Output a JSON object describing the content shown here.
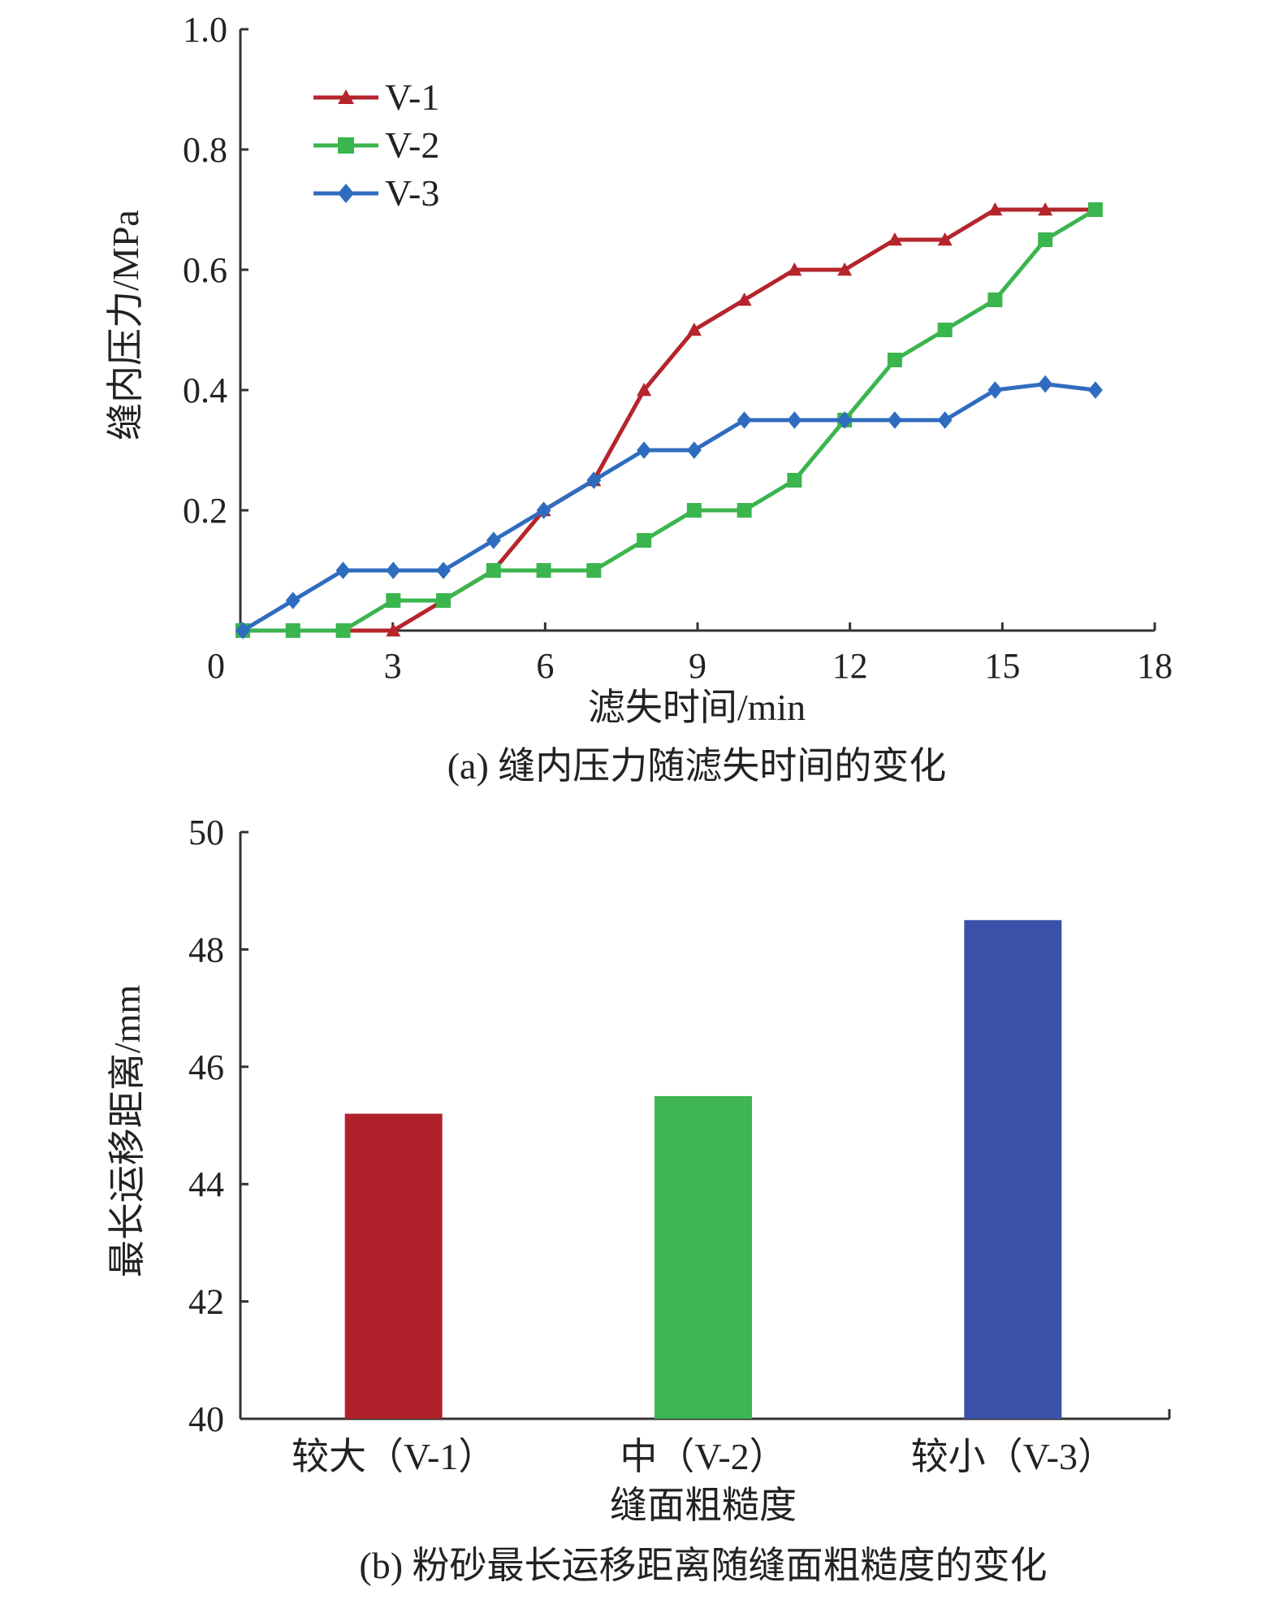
{
  "chart_data": [
    {
      "type": "line",
      "caption": "(a) 缝内压力随滤失时间的变化",
      "xlabel": "滤失时间/min",
      "ylabel": "缝内压力/MPa",
      "xlim": [
        0,
        18
      ],
      "ylim": [
        0,
        1.0
      ],
      "x_ticks": [
        0,
        3,
        6,
        9,
        12,
        15,
        18
      ],
      "y_ticks": [
        0.2,
        0.4,
        0.6,
        0.8,
        1.0
      ],
      "y_tick_labels": [
        "0.2",
        "0.4",
        "0.6",
        "0.8",
        "1.0"
      ],
      "legend_position": "top-left",
      "grid": false,
      "series": [
        {
          "name": "V-1",
          "color": "#b5252b",
          "marker": "triangle",
          "x": [
            0,
            1,
            2,
            3,
            4,
            5,
            6,
            7,
            8,
            9,
            10,
            11,
            12,
            13,
            14,
            15,
            16,
            17
          ],
          "y": [
            0,
            0,
            0,
            0,
            0.05,
            0.1,
            0.2,
            0.25,
            0.4,
            0.5,
            0.55,
            0.6,
            0.6,
            0.65,
            0.65,
            0.7,
            0.7,
            0.7
          ]
        },
        {
          "name": "V-2",
          "color": "#3bb54e",
          "marker": "square",
          "x": [
            0,
            1,
            2,
            3,
            4,
            5,
            6,
            7,
            8,
            9,
            10,
            11,
            12,
            13,
            14,
            15,
            16,
            17
          ],
          "y": [
            0,
            0,
            0,
            0.05,
            0.05,
            0.1,
            0.1,
            0.1,
            0.15,
            0.2,
            0.2,
            0.25,
            0.35,
            0.45,
            0.5,
            0.55,
            0.65,
            0.7
          ]
        },
        {
          "name": "V-3",
          "color": "#2f6cbf",
          "marker": "diamond",
          "x": [
            0,
            1,
            2,
            3,
            4,
            5,
            6,
            7,
            8,
            9,
            10,
            11,
            12,
            13,
            14,
            15,
            16,
            17
          ],
          "y": [
            0,
            0.05,
            0.1,
            0.1,
            0.1,
            0.15,
            0.2,
            0.25,
            0.3,
            0.3,
            0.35,
            0.35,
            0.35,
            0.35,
            0.35,
            0.4,
            0.41,
            0.4
          ]
        }
      ]
    },
    {
      "type": "bar",
      "caption": "(b) 粉砂最长运移距离随缝面粗糙度的变化",
      "xlabel": "缝面粗糙度",
      "ylabel": "最长运移距离/mm",
      "ylim": [
        40,
        50
      ],
      "y_ticks": [
        40,
        42,
        44,
        46,
        48,
        50
      ],
      "categories": [
        "较大（V-1）",
        "中（V-2）",
        "较小（V-3）"
      ],
      "values": [
        45.2,
        45.5,
        48.5
      ],
      "colors": [
        "#b0222b",
        "#3db552",
        "#3b52ab"
      ],
      "grid": false
    }
  ]
}
